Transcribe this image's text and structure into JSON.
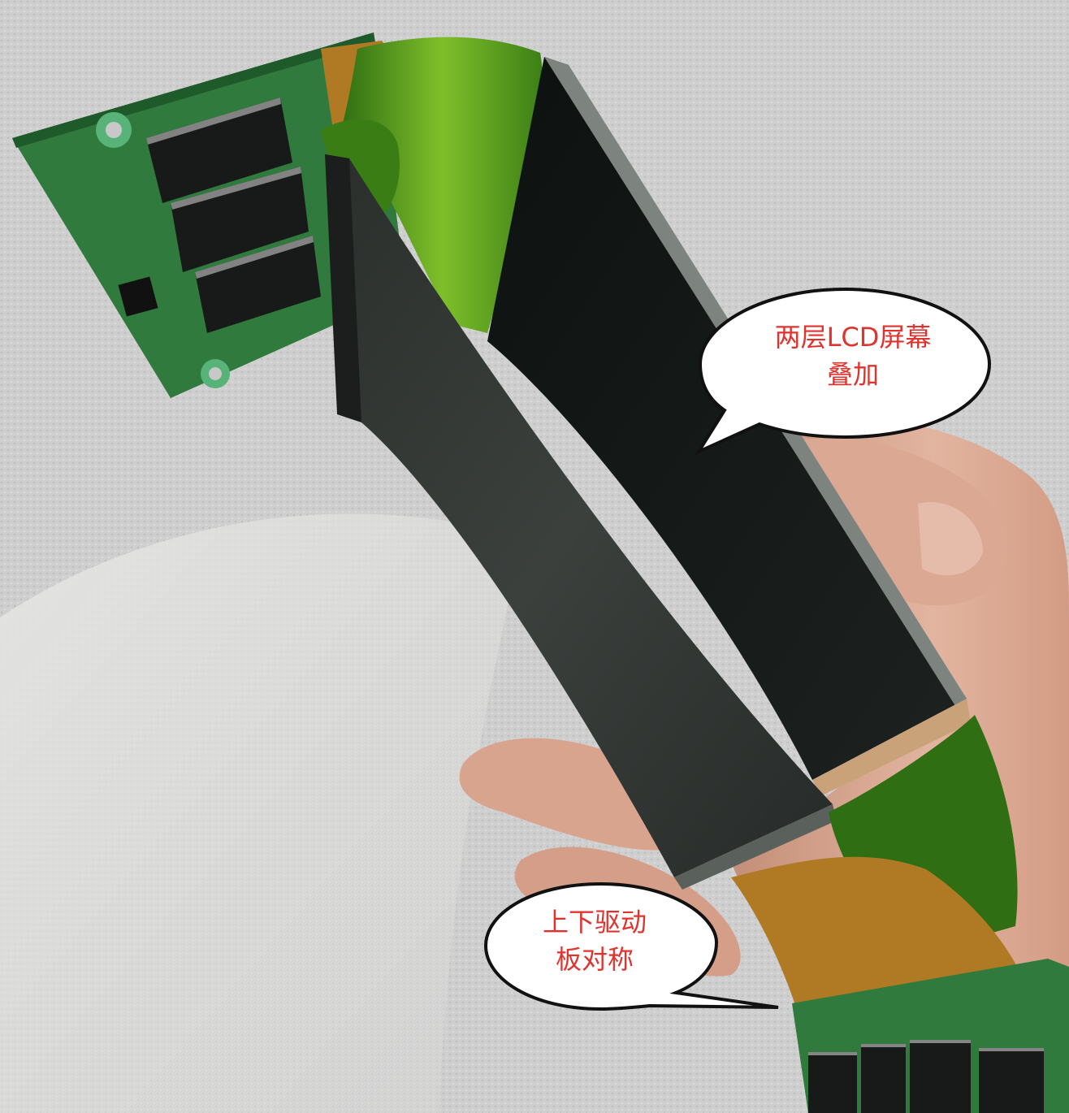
{
  "photo": {
    "subject": "disassembled dual-layer LCD panel held in hand",
    "colors": {
      "background": "#c9c9c9",
      "fabric_light": "#d6d6d6",
      "pcb_green": "#2f7a3c",
      "flex_green": "#4f9a1f",
      "flex_amber": "#b07a25",
      "panel_dark": "#151816",
      "panel_edge": "#4a4f4c",
      "skin": "#d9a992",
      "callout_fill": "#ffffff",
      "callout_stroke": "#111111",
      "callout_text": "#e0332e"
    }
  },
  "callouts": {
    "top": {
      "line1": "两层LCD屏幕",
      "line2": "叠加"
    },
    "bottom": {
      "line1": "上下驱动",
      "line2": "板对称"
    }
  }
}
